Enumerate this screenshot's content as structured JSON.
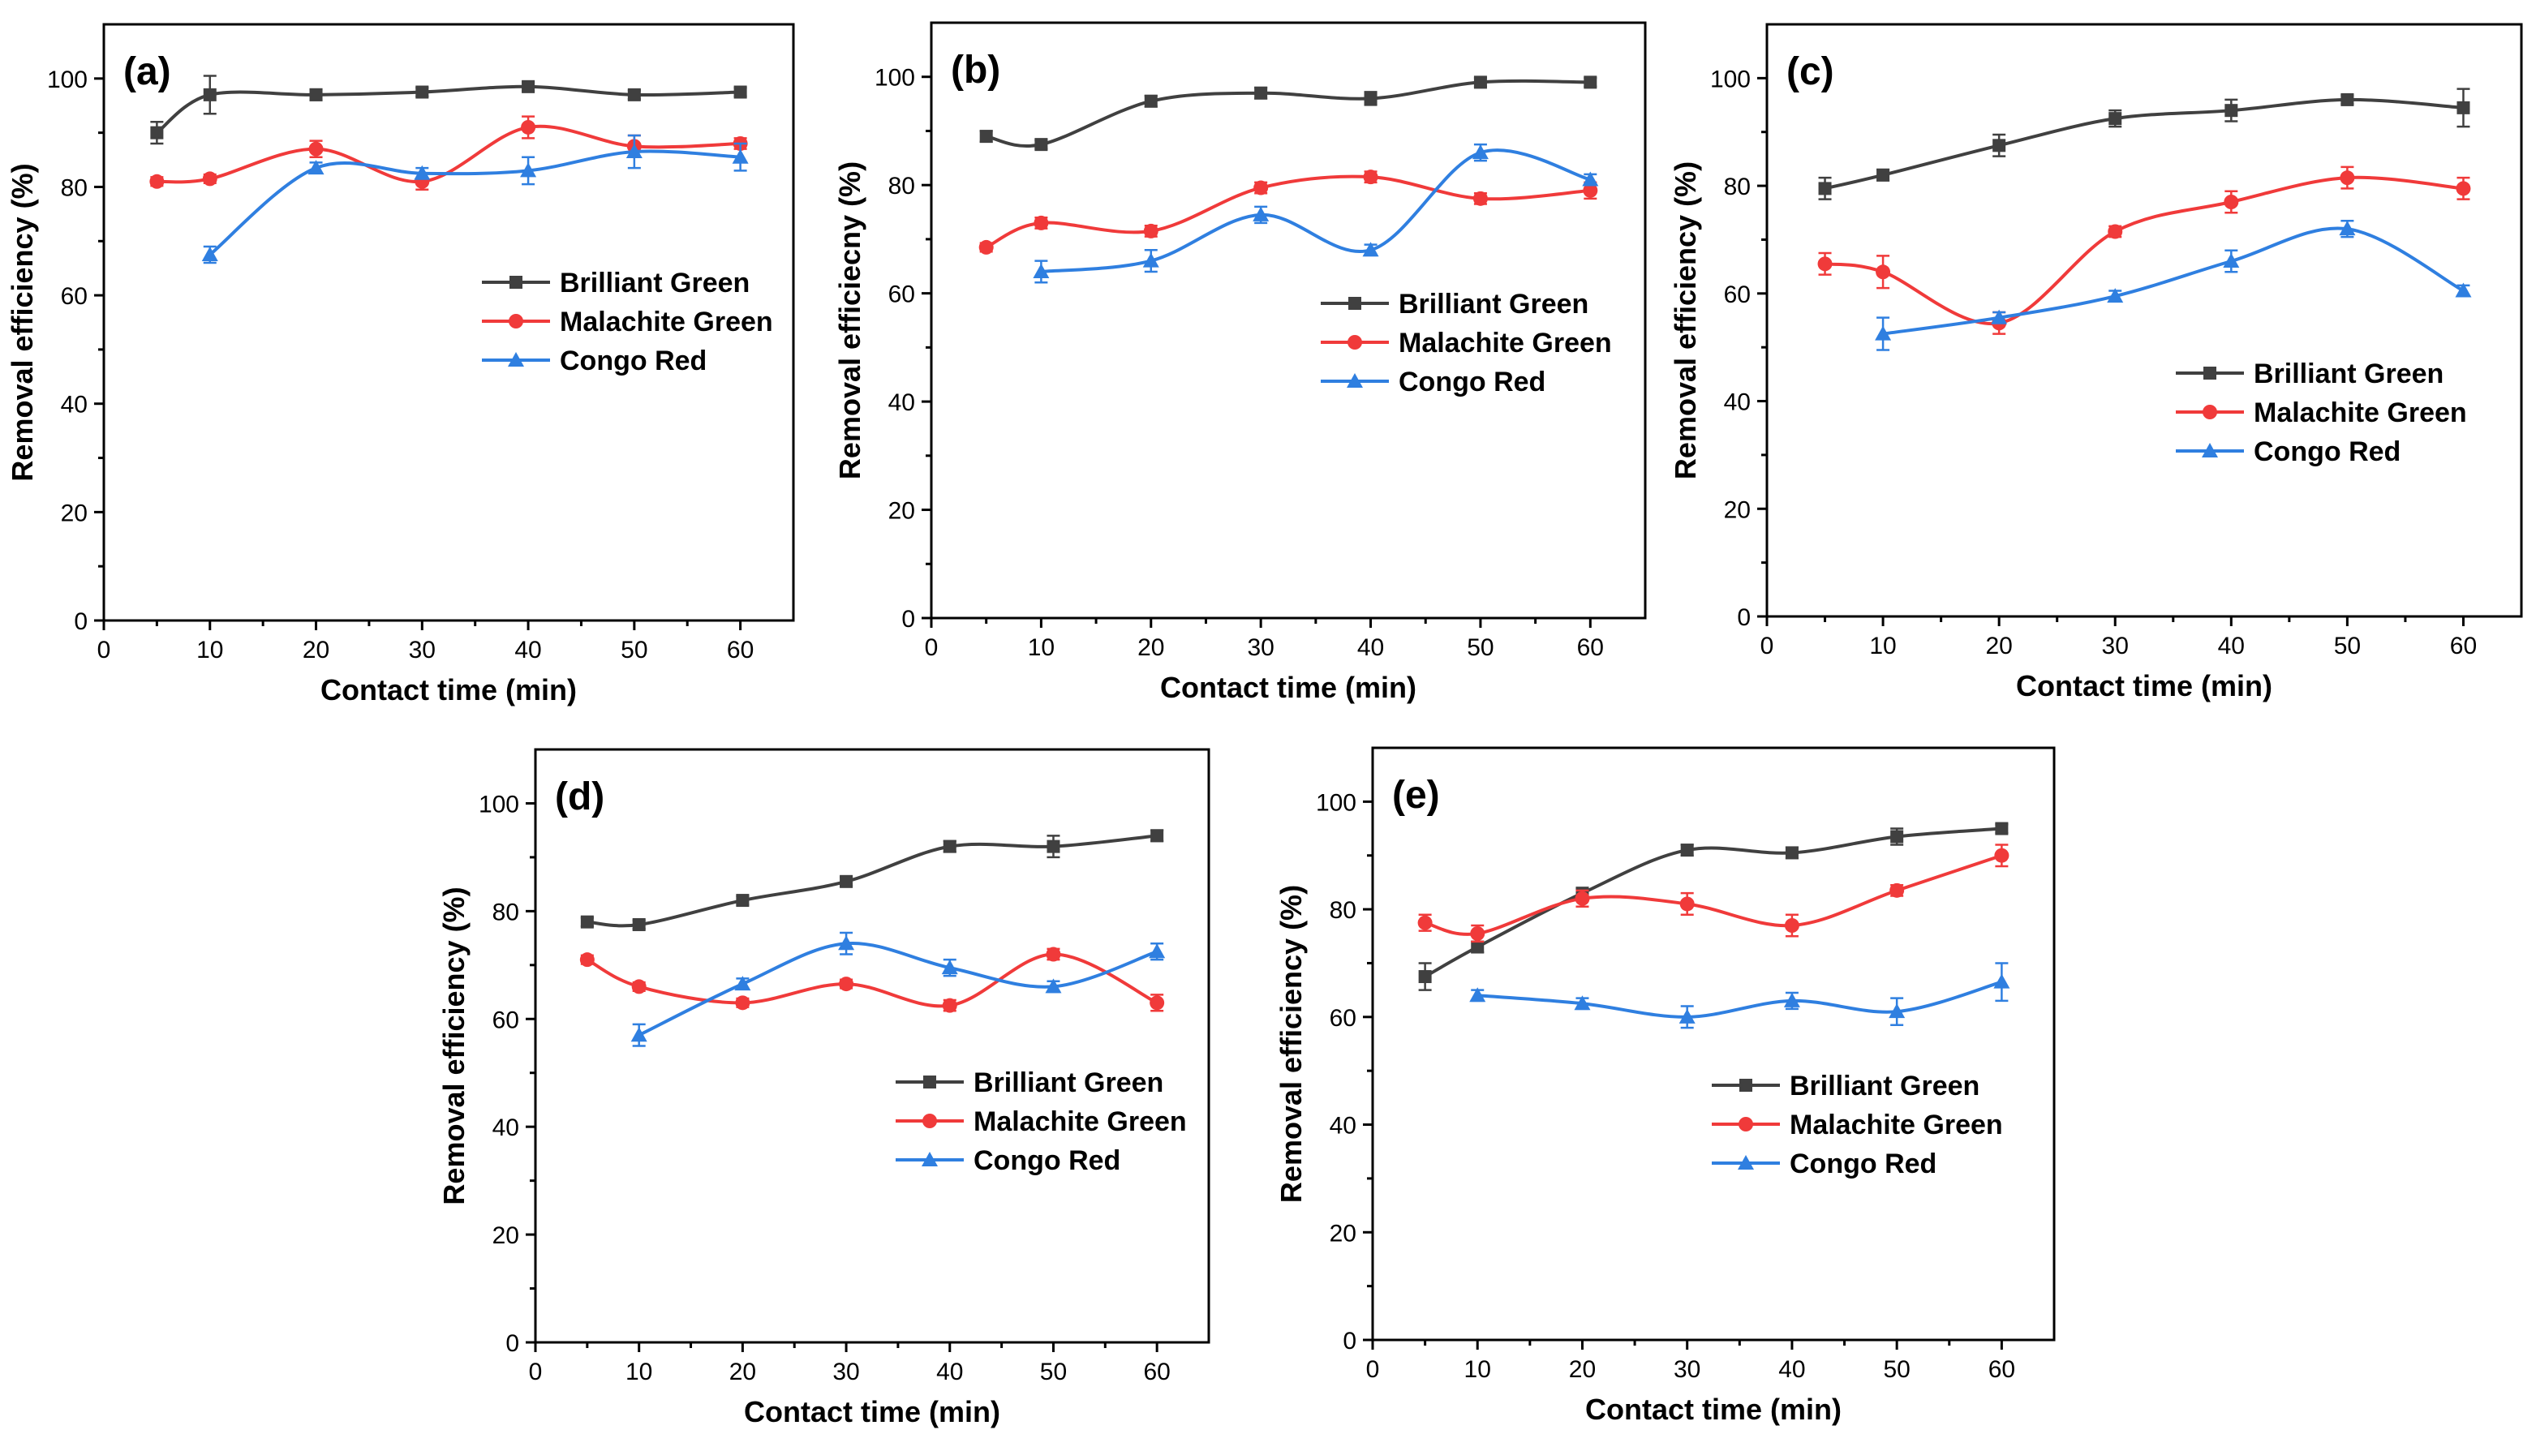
{
  "colors": {
    "brilliant_green": "#404040",
    "malachite_green": "#f03a3a",
    "congo_red": "#2f7fe0"
  },
  "chart_data": [
    {
      "type": "line",
      "panel": "(a)",
      "xlabel": "Contact time (min)",
      "ylabel": "Removal efficiency (%)",
      "xlim": [
        0,
        65
      ],
      "ylim": [
        0,
        110
      ],
      "xticks": [
        0,
        10,
        20,
        30,
        40,
        50,
        60
      ],
      "yticks": [
        0,
        20,
        40,
        60,
        80,
        100
      ],
      "legend_position": "right-center",
      "series": [
        {
          "name": "Brilliant Green",
          "marker": "square",
          "x": [
            5,
            10,
            20,
            30,
            40,
            50,
            60
          ],
          "y": [
            90,
            97,
            97,
            97.5,
            98.5,
            97,
            97.5
          ],
          "err": [
            2,
            3.5,
            1,
            0.8,
            0.8,
            0.8,
            0.8
          ]
        },
        {
          "name": "Malachite Green",
          "marker": "circle",
          "x": [
            5,
            10,
            20,
            30,
            40,
            50,
            60
          ],
          "y": [
            81,
            81.5,
            87,
            81,
            91,
            87.5,
            88
          ],
          "err": [
            0.8,
            0.8,
            1.5,
            1.5,
            2,
            2,
            1
          ]
        },
        {
          "name": "Congo Red",
          "marker": "triangle",
          "x": [
            10,
            20,
            30,
            40,
            50,
            60
          ],
          "y": [
            67.5,
            83.5,
            82.5,
            83,
            86.5,
            85.5
          ],
          "err": [
            1.5,
            1,
            1,
            2.5,
            3,
            2.5
          ]
        }
      ]
    },
    {
      "type": "line",
      "panel": "(b)",
      "xlabel": "Contact time (min)",
      "ylabel": "Removal efficiecny (%)",
      "xlim": [
        0,
        65
      ],
      "ylim": [
        0,
        110
      ],
      "xticks": [
        0,
        10,
        20,
        30,
        40,
        50,
        60
      ],
      "yticks": [
        0,
        20,
        40,
        60,
        80,
        100
      ],
      "legend_position": "right-center",
      "series": [
        {
          "name": "Brilliant Green",
          "marker": "square",
          "x": [
            5,
            10,
            20,
            30,
            40,
            50,
            60
          ],
          "y": [
            89,
            87.5,
            95.5,
            97,
            96,
            99,
            99
          ],
          "err": [
            1,
            0.8,
            1,
            1,
            1.2,
            0.8,
            0.8
          ]
        },
        {
          "name": "Malachite Green",
          "marker": "circle",
          "x": [
            5,
            10,
            20,
            30,
            40,
            50,
            60
          ],
          "y": [
            68.5,
            73,
            71.5,
            79.5,
            81.5,
            77.5,
            79
          ],
          "err": [
            0.8,
            1,
            1,
            1,
            1,
            1,
            1.5
          ]
        },
        {
          "name": "Congo Red",
          "marker": "triangle",
          "x": [
            10,
            20,
            30,
            40,
            50,
            60
          ],
          "y": [
            64,
            66,
            74.5,
            68,
            86,
            81
          ],
          "err": [
            2,
            2,
            1.5,
            1,
            1.5,
            1
          ]
        }
      ]
    },
    {
      "type": "line",
      "panel": "(c)",
      "xlabel": "Contact time (min)",
      "ylabel": "Removal efficiency (%)",
      "xlim": [
        0,
        65
      ],
      "ylim": [
        0,
        110
      ],
      "xticks": [
        0,
        10,
        20,
        30,
        40,
        50,
        60
      ],
      "yticks": [
        0,
        20,
        40,
        60,
        80,
        100
      ],
      "legend_position": "lower-right",
      "series": [
        {
          "name": "Brilliant Green",
          "marker": "square",
          "x": [
            5,
            10,
            20,
            30,
            40,
            50,
            60
          ],
          "y": [
            79.5,
            82,
            87.5,
            92.5,
            94,
            96,
            94.5
          ],
          "err": [
            2,
            1,
            2,
            1.5,
            2,
            0.8,
            3.5
          ]
        },
        {
          "name": "Malachite Green",
          "marker": "circle",
          "x": [
            5,
            10,
            20,
            30,
            40,
            50,
            60
          ],
          "y": [
            65.5,
            64,
            54.5,
            71.5,
            77,
            81.5,
            79.5
          ],
          "err": [
            2,
            3,
            2,
            1,
            2,
            2,
            2
          ]
        },
        {
          "name": "Congo Red",
          "marker": "triangle",
          "x": [
            10,
            20,
            30,
            40,
            50,
            60
          ],
          "y": [
            52.5,
            55.5,
            59.5,
            66,
            72,
            60.5
          ],
          "err": [
            3,
            1,
            1,
            2,
            1.5,
            1
          ]
        }
      ]
    },
    {
      "type": "line",
      "panel": "(d)",
      "xlabel": "Contact time (min)",
      "ylabel": "Removal efficiency (%)",
      "xlim": [
        0,
        65
      ],
      "ylim": [
        0,
        110
      ],
      "xticks": [
        0,
        10,
        20,
        30,
        40,
        50,
        60
      ],
      "yticks": [
        0,
        20,
        40,
        60,
        80,
        100
      ],
      "legend_position": "lower-right",
      "series": [
        {
          "name": "Brilliant Green",
          "marker": "square",
          "x": [
            5,
            10,
            20,
            30,
            40,
            50,
            60
          ],
          "y": [
            78,
            77.5,
            82,
            85.5,
            92,
            92,
            94
          ],
          "err": [
            0.8,
            0.8,
            0.8,
            0.8,
            1,
            2,
            1
          ]
        },
        {
          "name": "Malachite Green",
          "marker": "circle",
          "x": [
            5,
            10,
            20,
            30,
            40,
            50,
            60
          ],
          "y": [
            71,
            66,
            63,
            66.5,
            62.5,
            72,
            63
          ],
          "err": [
            0.8,
            0.8,
            0.8,
            0.8,
            1,
            1,
            1.5
          ]
        },
        {
          "name": "Congo Red",
          "marker": "triangle",
          "x": [
            10,
            20,
            30,
            40,
            50,
            60
          ],
          "y": [
            57,
            66.5,
            74,
            69.5,
            66,
            72.5
          ],
          "err": [
            2,
            1,
            2,
            1.5,
            1,
            1.5
          ]
        }
      ]
    },
    {
      "type": "line",
      "panel": "(e)",
      "xlabel": "Contact time (min)",
      "ylabel": "Removal efficiency (%)",
      "xlim": [
        0,
        65
      ],
      "ylim": [
        0,
        110
      ],
      "xticks": [
        0,
        10,
        20,
        30,
        40,
        50,
        60
      ],
      "yticks": [
        0,
        20,
        40,
        60,
        80,
        100
      ],
      "legend_position": "lower-right",
      "series": [
        {
          "name": "Brilliant Green",
          "marker": "square",
          "x": [
            5,
            10,
            20,
            30,
            40,
            50,
            60
          ],
          "y": [
            67.5,
            73,
            83,
            91,
            90.5,
            93.5,
            95
          ],
          "err": [
            2.5,
            1,
            0.8,
            1,
            1,
            1.5,
            0.8
          ]
        },
        {
          "name": "Malachite Green",
          "marker": "circle",
          "x": [
            5,
            10,
            20,
            30,
            40,
            50,
            60
          ],
          "y": [
            77.5,
            75.5,
            82,
            81,
            77,
            83.5,
            90
          ],
          "err": [
            1.5,
            1.5,
            1.5,
            2,
            2,
            1,
            2
          ]
        },
        {
          "name": "Congo Red",
          "marker": "triangle",
          "x": [
            10,
            20,
            30,
            40,
            50,
            60
          ],
          "y": [
            64,
            62.5,
            60,
            63,
            61,
            66.5
          ],
          "err": [
            1,
            1,
            2,
            1.5,
            2.5,
            3.5
          ]
        }
      ]
    }
  ]
}
